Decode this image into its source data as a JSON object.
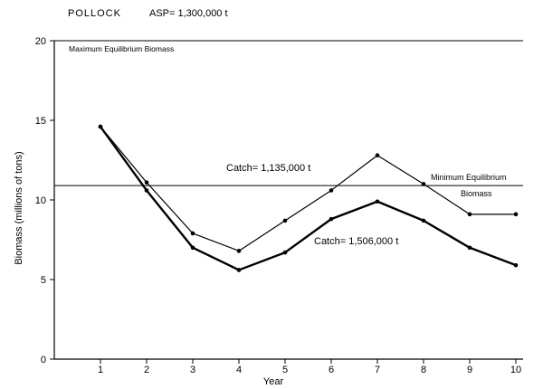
{
  "chart_data": {
    "type": "line",
    "header_title": "POLLOCK",
    "header_asp": "ASP= 1,300,000 t",
    "xlabel": "Year",
    "ylabel": "Biomass (millions of tons)",
    "x_ticks": [
      1,
      2,
      3,
      4,
      5,
      6,
      7,
      8,
      9,
      10
    ],
    "y_ticks": [
      0,
      5,
      10,
      15,
      20
    ],
    "xlim": [
      0,
      10
    ],
    "ylim": [
      0,
      20
    ],
    "grid": false,
    "x": [
      1,
      2,
      3,
      4,
      5,
      6,
      7,
      8,
      9,
      10
    ],
    "series": [
      {
        "name": "Catch= 1,135,000 t",
        "values": [
          14.6,
          11.1,
          7.9,
          6.8,
          8.7,
          10.6,
          12.8,
          11.0,
          9.1,
          9.1
        ],
        "stroke_width": 1.2
      },
      {
        "name": "Catch= 1,506,000 t",
        "values": [
          14.6,
          10.6,
          7.0,
          5.6,
          6.7,
          8.8,
          9.9,
          8.7,
          7.0,
          5.9
        ],
        "stroke_width": 2.4
      }
    ],
    "reference_lines": [
      {
        "label": "Maximum Equilibrium Biomass",
        "value": 20
      },
      {
        "label_line1": "Minimum Equilibrium",
        "label_line2": "Biomass",
        "value": 10.9
      }
    ]
  }
}
